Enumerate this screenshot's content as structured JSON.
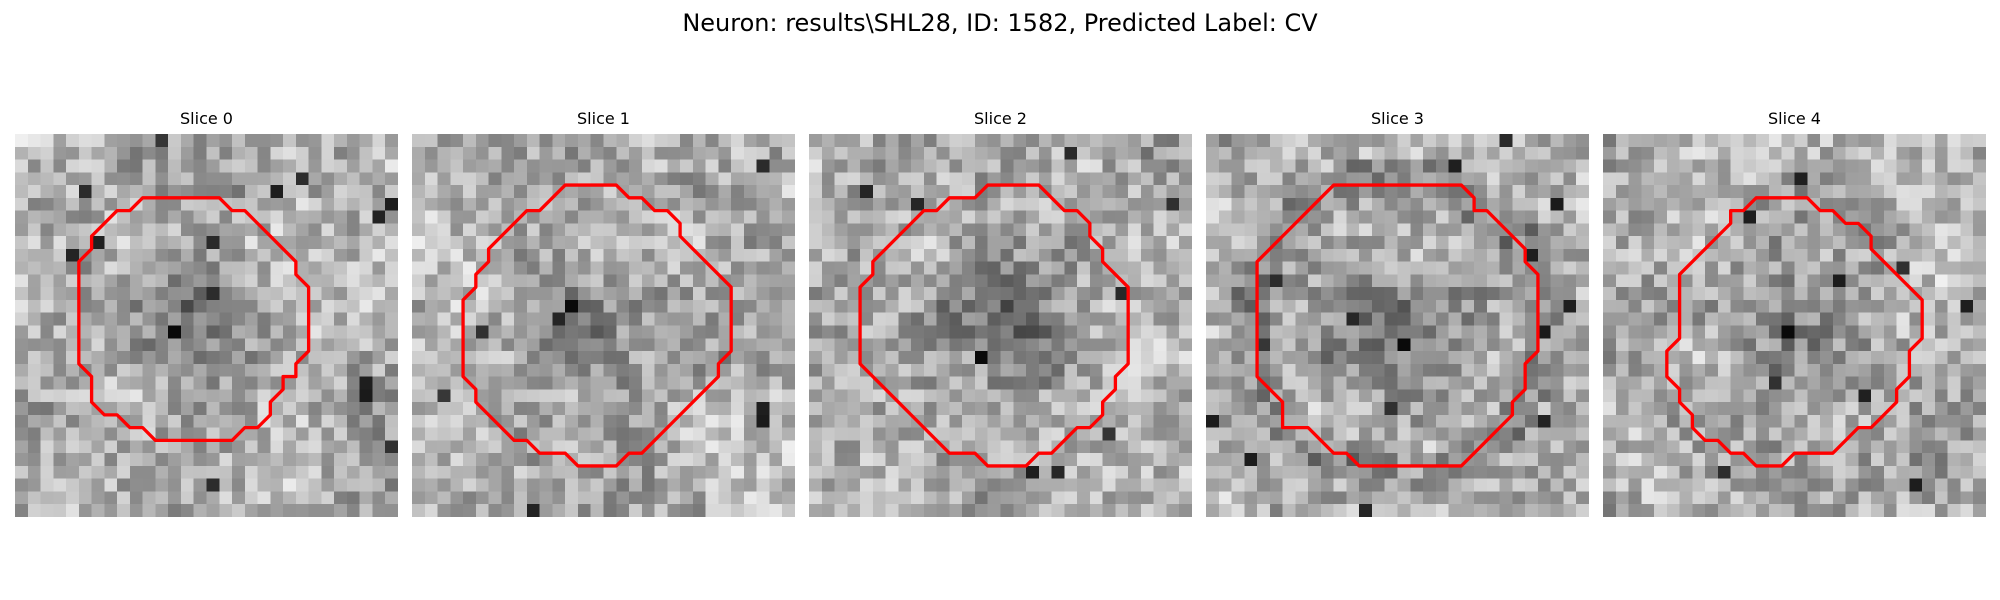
{
  "figure": {
    "title": "Neuron: results\\SHL28, ID: 1582, Predicted Label: CV"
  },
  "colors": {
    "background": "#ffffff",
    "contour": "#ff0000",
    "colormap": "grayscale"
  },
  "panels": [
    {
      "title": "Slice 0",
      "contour": [
        [
          12,
          5
        ],
        [
          16,
          5
        ],
        [
          17,
          6
        ],
        [
          18,
          6
        ],
        [
          19,
          7
        ],
        [
          20,
          8
        ],
        [
          21,
          9
        ],
        [
          22,
          10
        ],
        [
          22,
          11
        ],
        [
          23,
          12
        ],
        [
          23,
          17
        ],
        [
          22,
          18
        ],
        [
          22,
          19
        ],
        [
          21,
          19
        ],
        [
          21,
          20
        ],
        [
          20,
          21
        ],
        [
          20,
          22
        ],
        [
          19,
          23
        ],
        [
          18,
          23
        ],
        [
          17,
          24
        ],
        [
          11,
          24
        ],
        [
          10,
          23
        ],
        [
          9,
          23
        ],
        [
          8,
          22
        ],
        [
          7,
          22
        ],
        [
          6,
          21
        ],
        [
          6,
          19
        ],
        [
          5,
          18
        ],
        [
          5,
          15
        ],
        [
          5,
          11
        ],
        [
          5,
          10
        ],
        [
          6,
          9
        ],
        [
          6,
          8
        ],
        [
          7,
          7
        ],
        [
          8,
          6
        ],
        [
          9,
          6
        ],
        [
          10,
          5
        ]
      ],
      "dark_spot": [
        12,
        15
      ]
    },
    {
      "title": "Slice 1",
      "contour": [
        [
          12,
          4
        ],
        [
          16,
          4
        ],
        [
          17,
          5
        ],
        [
          18,
          5
        ],
        [
          19,
          6
        ],
        [
          20,
          6
        ],
        [
          21,
          7
        ],
        [
          21,
          8
        ],
        [
          22,
          9
        ],
        [
          23,
          10
        ],
        [
          24,
          11
        ],
        [
          25,
          12
        ],
        [
          25,
          17
        ],
        [
          24,
          18
        ],
        [
          24,
          19
        ],
        [
          23,
          20
        ],
        [
          22,
          21
        ],
        [
          21,
          22
        ],
        [
          20,
          23
        ],
        [
          19,
          24
        ],
        [
          18,
          25
        ],
        [
          17,
          25
        ],
        [
          16,
          26
        ],
        [
          13,
          26
        ],
        [
          12,
          25
        ],
        [
          10,
          25
        ],
        [
          9,
          24
        ],
        [
          8,
          24
        ],
        [
          7,
          23
        ],
        [
          6,
          22
        ],
        [
          5,
          21
        ],
        [
          5,
          20
        ],
        [
          4,
          19
        ],
        [
          4,
          13
        ],
        [
          5,
          12
        ],
        [
          5,
          11
        ],
        [
          6,
          10
        ],
        [
          6,
          9
        ],
        [
          7,
          8
        ],
        [
          8,
          7
        ],
        [
          9,
          6
        ],
        [
          10,
          6
        ],
        [
          11,
          5
        ]
      ],
      "dark_spot": [
        12,
        13
      ]
    },
    {
      "title": "Slice 2",
      "contour": [
        [
          11,
          5
        ],
        [
          13,
          5
        ],
        [
          14,
          4
        ],
        [
          18,
          4
        ],
        [
          19,
          5
        ],
        [
          20,
          6
        ],
        [
          21,
          6
        ],
        [
          22,
          7
        ],
        [
          22,
          8
        ],
        [
          23,
          9
        ],
        [
          23,
          10
        ],
        [
          24,
          11
        ],
        [
          25,
          12
        ],
        [
          25,
          18
        ],
        [
          24,
          19
        ],
        [
          24,
          20
        ],
        [
          23,
          21
        ],
        [
          23,
          22
        ],
        [
          22,
          23
        ],
        [
          21,
          23
        ],
        [
          20,
          24
        ],
        [
          19,
          25
        ],
        [
          18,
          25
        ],
        [
          17,
          26
        ],
        [
          14,
          26
        ],
        [
          13,
          25
        ],
        [
          11,
          25
        ],
        [
          10,
          24
        ],
        [
          9,
          23
        ],
        [
          8,
          22
        ],
        [
          7,
          21
        ],
        [
          6,
          20
        ],
        [
          5,
          19
        ],
        [
          4,
          18
        ],
        [
          4,
          12
        ],
        [
          5,
          11
        ],
        [
          5,
          10
        ],
        [
          6,
          9
        ],
        [
          7,
          8
        ],
        [
          8,
          7
        ],
        [
          9,
          6
        ],
        [
          10,
          6
        ]
      ],
      "dark_spot": [
        13,
        17
      ]
    },
    {
      "title": "Slice 3",
      "contour": [
        [
          10,
          4
        ],
        [
          20,
          4
        ],
        [
          21,
          5
        ],
        [
          21,
          6
        ],
        [
          22,
          6
        ],
        [
          23,
          7
        ],
        [
          24,
          8
        ],
        [
          25,
          9
        ],
        [
          25,
          10
        ],
        [
          26,
          11
        ],
        [
          26,
          13
        ],
        [
          26,
          17
        ],
        [
          25,
          18
        ],
        [
          25,
          20
        ],
        [
          24,
          21
        ],
        [
          24,
          22
        ],
        [
          23,
          23
        ],
        [
          22,
          24
        ],
        [
          21,
          25
        ],
        [
          20,
          26
        ],
        [
          12,
          26
        ],
        [
          11,
          25
        ],
        [
          10,
          25
        ],
        [
          9,
          24
        ],
        [
          8,
          23
        ],
        [
          6,
          23
        ],
        [
          6,
          21
        ],
        [
          5,
          20
        ],
        [
          4,
          19
        ],
        [
          4,
          10
        ],
        [
          5,
          9
        ],
        [
          6,
          8
        ],
        [
          7,
          7
        ],
        [
          8,
          6
        ],
        [
          9,
          5
        ]
      ],
      "dark_spot": [
        15,
        16
      ]
    },
    {
      "title": "Slice 4",
      "contour": [
        [
          12,
          5
        ],
        [
          16,
          5
        ],
        [
          17,
          6
        ],
        [
          18,
          6
        ],
        [
          19,
          7
        ],
        [
          20,
          7
        ],
        [
          21,
          8
        ],
        [
          21,
          9
        ],
        [
          22,
          10
        ],
        [
          23,
          11
        ],
        [
          24,
          12
        ],
        [
          25,
          13
        ],
        [
          25,
          16
        ],
        [
          24,
          17
        ],
        [
          24,
          19
        ],
        [
          23,
          20
        ],
        [
          23,
          21
        ],
        [
          22,
          22
        ],
        [
          21,
          23
        ],
        [
          20,
          23
        ],
        [
          19,
          24
        ],
        [
          18,
          25
        ],
        [
          15,
          25
        ],
        [
          14,
          26
        ],
        [
          12,
          26
        ],
        [
          11,
          25
        ],
        [
          10,
          25
        ],
        [
          9,
          24
        ],
        [
          8,
          24
        ],
        [
          7,
          23
        ],
        [
          7,
          22
        ],
        [
          6,
          21
        ],
        [
          6,
          20
        ],
        [
          5,
          19
        ],
        [
          5,
          17
        ],
        [
          6,
          16
        ],
        [
          6,
          11
        ],
        [
          7,
          10
        ],
        [
          8,
          9
        ],
        [
          9,
          8
        ],
        [
          10,
          7
        ],
        [
          10,
          6
        ],
        [
          11,
          6
        ]
      ],
      "dark_spot": [
        14,
        15
      ]
    }
  ]
}
